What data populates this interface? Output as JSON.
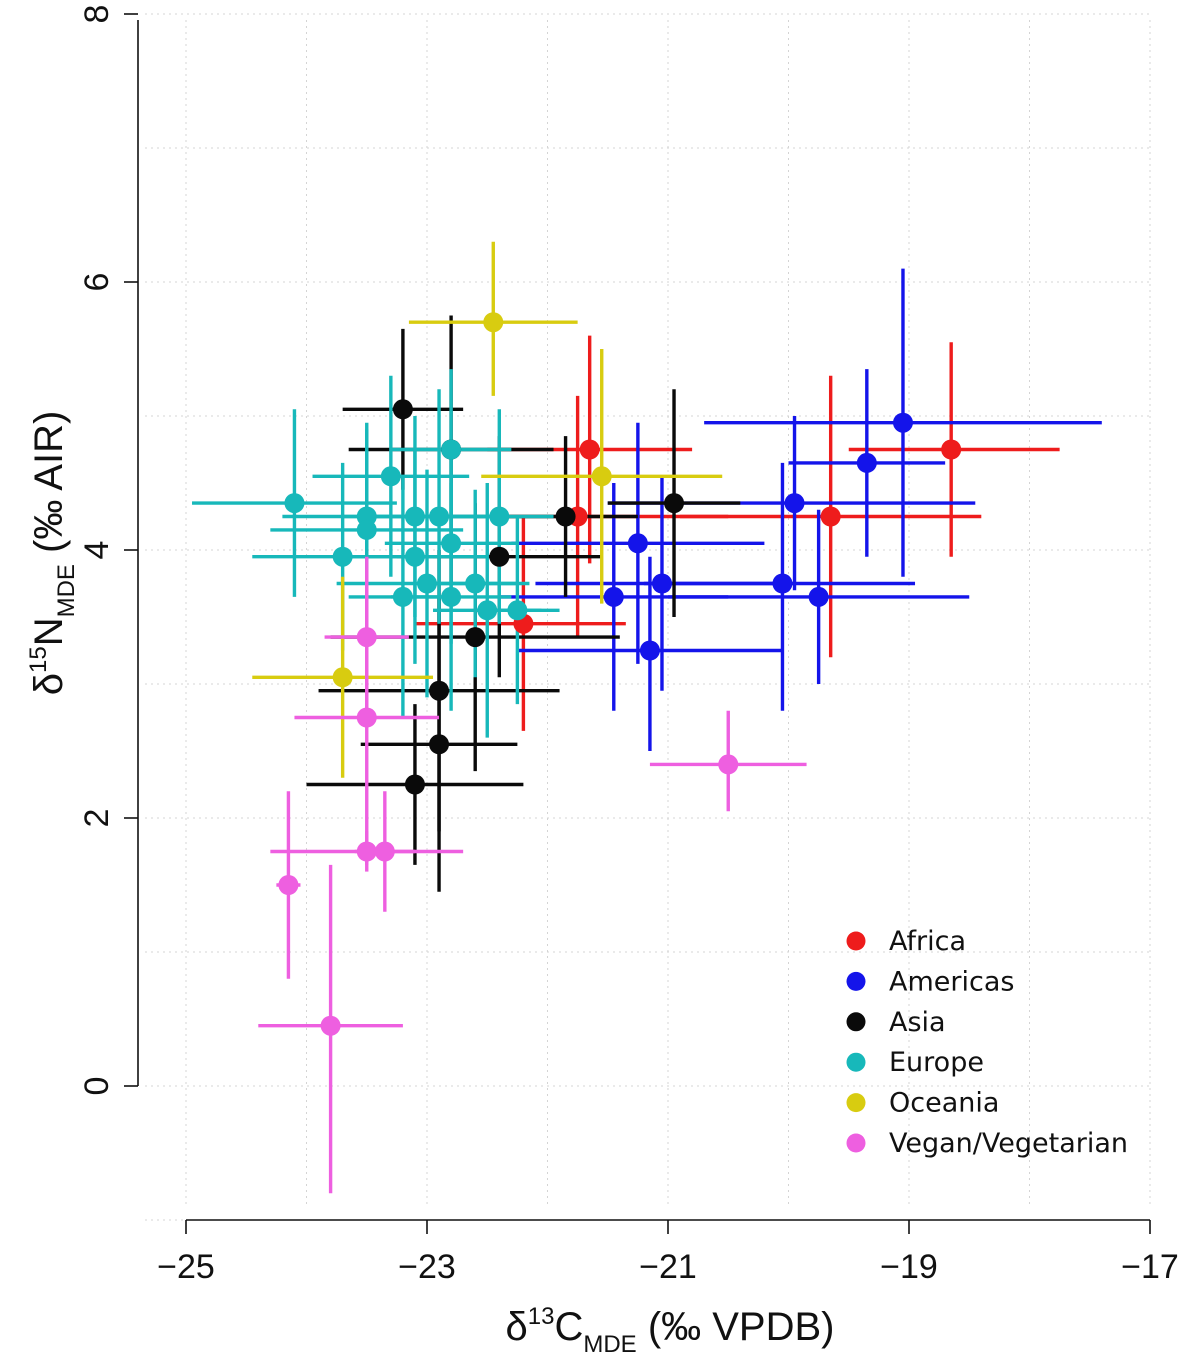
{
  "chart_data": {
    "type": "scatter",
    "title": "",
    "xlabel": {
      "base": "δ",
      "sup": "13",
      "main": "C",
      "sub": "MDE",
      "tail": " (‰ VPDB)"
    },
    "ylabel": {
      "base": "δ",
      "sup": "15",
      "main": "N",
      "sub": "MDE",
      "tail": " (‰ AIR)"
    },
    "xlim": [
      -25,
      -17
    ],
    "ylim": [
      -1,
      8
    ],
    "x_ticks": [
      -25,
      -23,
      -21,
      -19,
      -17
    ],
    "x_tick_labels": [
      "−25",
      "−23",
      "−21",
      "−19",
      "−17"
    ],
    "y_ticks": [
      0,
      2,
      4,
      6,
      8
    ],
    "y_tick_labels": [
      "0",
      "2",
      "4",
      "6",
      "8"
    ],
    "grid": true,
    "error_bars": true,
    "legend_position": "bottom-right",
    "series": [
      {
        "name": "Africa",
        "color": "#ee1c1c",
        "points": [
          {
            "x": -21.65,
            "y": 4.75,
            "xlo": -22.5,
            "xhi": -20.8,
            "ylo": 3.9,
            "yhi": 5.6
          },
          {
            "x": -21.75,
            "y": 4.25,
            "xlo": -23.0,
            "xhi": -20.5,
            "ylo": 3.35,
            "yhi": 5.15
          },
          {
            "x": -22.2,
            "y": 3.45,
            "xlo": -23.1,
            "xhi": -21.35,
            "ylo": 2.65,
            "yhi": 4.25
          },
          {
            "x": -19.65,
            "y": 4.25,
            "xlo": -20.9,
            "xhi": -18.4,
            "ylo": 3.2,
            "yhi": 5.3
          },
          {
            "x": -18.65,
            "y": 4.75,
            "xlo": -19.5,
            "xhi": -17.75,
            "ylo": 3.95,
            "yhi": 5.55
          }
        ]
      },
      {
        "name": "Americas",
        "color": "#1414ea",
        "points": [
          {
            "x": -19.05,
            "y": 4.95,
            "xlo": -20.7,
            "xhi": -17.4,
            "ylo": 3.8,
            "yhi": 6.1
          },
          {
            "x": -19.35,
            "y": 4.65,
            "xlo": -20.0,
            "xhi": -18.7,
            "ylo": 3.95,
            "yhi": 5.35
          },
          {
            "x": -19.95,
            "y": 4.35,
            "xlo": -21.5,
            "xhi": -18.45,
            "ylo": 3.7,
            "yhi": 5.0
          },
          {
            "x": -21.25,
            "y": 4.05,
            "xlo": -22.3,
            "xhi": -20.2,
            "ylo": 3.15,
            "yhi": 4.95
          },
          {
            "x": -21.05,
            "y": 3.75,
            "xlo": -22.1,
            "xhi": -20.0,
            "ylo": 2.95,
            "yhi": 4.55
          },
          {
            "x": -20.05,
            "y": 3.75,
            "xlo": -21.2,
            "xhi": -18.95,
            "ylo": 2.8,
            "yhi": 4.65
          },
          {
            "x": -21.45,
            "y": 3.65,
            "xlo": -22.4,
            "xhi": -20.5,
            "ylo": 2.8,
            "yhi": 4.5
          },
          {
            "x": -19.75,
            "y": 3.65,
            "xlo": -21.0,
            "xhi": -18.5,
            "ylo": 3.0,
            "yhi": 4.3
          },
          {
            "x": -21.15,
            "y": 3.25,
            "xlo": -22.25,
            "xhi": -20.05,
            "ylo": 2.5,
            "yhi": 3.95
          }
        ]
      },
      {
        "name": "Asia",
        "color": "#0a0a0a",
        "points": [
          {
            "x": -23.2,
            "y": 5.05,
            "xlo": -23.7,
            "xhi": -22.7,
            "ylo": 4.45,
            "yhi": 5.65
          },
          {
            "x": -22.4,
            "y": 3.95,
            "xlo": -23.25,
            "xhi": -21.55,
            "ylo": 3.05,
            "yhi": 4.85
          },
          {
            "x": -21.85,
            "y": 4.25,
            "xlo": -22.45,
            "xhi": -21.25,
            "ylo": 3.65,
            "yhi": 4.85
          },
          {
            "x": -20.95,
            "y": 4.35,
            "xlo": -21.5,
            "xhi": -20.4,
            "ylo": 3.5,
            "yhi": 5.2
          },
          {
            "x": -22.6,
            "y": 3.35,
            "xlo": -23.8,
            "xhi": -21.4,
            "ylo": 2.35,
            "yhi": 4.35
          },
          {
            "x": -22.9,
            "y": 2.95,
            "xlo": -23.9,
            "xhi": -21.9,
            "ylo": 1.9,
            "yhi": 4.0
          },
          {
            "x": -22.9,
            "y": 2.55,
            "xlo": -23.55,
            "xhi": -22.25,
            "ylo": 1.45,
            "yhi": 3.65
          },
          {
            "x": -23.1,
            "y": 2.25,
            "xlo": -24.0,
            "xhi": -22.2,
            "ylo": 1.65,
            "yhi": 2.85
          },
          {
            "x": -22.8,
            "y": 4.75,
            "xlo": -23.65,
            "xhi": -21.95,
            "ylo": 3.75,
            "yhi": 5.75
          }
        ]
      },
      {
        "name": "Europe",
        "color": "#17b8ba",
        "points": [
          {
            "x": -24.1,
            "y": 4.35,
            "xlo": -24.95,
            "xhi": -23.25,
            "ylo": 3.65,
            "yhi": 5.05
          },
          {
            "x": -23.3,
            "y": 4.55,
            "xlo": -23.95,
            "xhi": -22.65,
            "ylo": 3.8,
            "yhi": 5.3
          },
          {
            "x": -22.8,
            "y": 4.75,
            "xlo": -23.3,
            "xhi": -22.3,
            "ylo": 4.15,
            "yhi": 5.35
          },
          {
            "x": -23.5,
            "y": 4.25,
            "xlo": -24.2,
            "xhi": -22.8,
            "ylo": 3.6,
            "yhi": 4.9
          },
          {
            "x": -23.5,
            "y": 4.15,
            "xlo": -24.3,
            "xhi": -22.7,
            "ylo": 3.35,
            "yhi": 4.95
          },
          {
            "x": -23.1,
            "y": 4.25,
            "xlo": -23.7,
            "xhi": -22.5,
            "ylo": 3.5,
            "yhi": 5.0
          },
          {
            "x": -22.9,
            "y": 4.25,
            "xlo": -23.45,
            "xhi": -22.35,
            "ylo": 3.45,
            "yhi": 5.2
          },
          {
            "x": -22.4,
            "y": 4.25,
            "xlo": -22.85,
            "xhi": -21.95,
            "ylo": 3.45,
            "yhi": 5.05
          },
          {
            "x": -22.8,
            "y": 4.05,
            "xlo": -23.35,
            "xhi": -22.25,
            "ylo": 3.3,
            "yhi": 4.8
          },
          {
            "x": -23.7,
            "y": 3.95,
            "xlo": -24.45,
            "xhi": -22.95,
            "ylo": 3.25,
            "yhi": 4.65
          },
          {
            "x": -23.1,
            "y": 3.95,
            "xlo": -23.7,
            "xhi": -22.5,
            "ylo": 3.15,
            "yhi": 4.75
          },
          {
            "x": -23.0,
            "y": 3.75,
            "xlo": -23.75,
            "xhi": -22.25,
            "ylo": 2.9,
            "yhi": 4.6
          },
          {
            "x": -22.6,
            "y": 3.75,
            "xlo": -23.05,
            "xhi": -22.15,
            "ylo": 3.05,
            "yhi": 4.45
          },
          {
            "x": -23.2,
            "y": 3.65,
            "xlo": -23.65,
            "xhi": -22.75,
            "ylo": 2.75,
            "yhi": 4.55
          },
          {
            "x": -22.8,
            "y": 3.65,
            "xlo": -23.3,
            "xhi": -22.3,
            "ylo": 2.8,
            "yhi": 4.5
          },
          {
            "x": -22.5,
            "y": 3.55,
            "xlo": -22.95,
            "xhi": -22.05,
            "ylo": 2.6,
            "yhi": 4.5
          },
          {
            "x": -22.25,
            "y": 3.55,
            "xlo": -22.6,
            "xhi": -21.9,
            "ylo": 2.85,
            "yhi": 4.25
          }
        ]
      },
      {
        "name": "Oceania",
        "color": "#d8cc10",
        "points": [
          {
            "x": -22.45,
            "y": 5.7,
            "xlo": -23.15,
            "xhi": -21.75,
            "ylo": 5.15,
            "yhi": 6.3
          },
          {
            "x": -21.55,
            "y": 4.55,
            "xlo": -22.55,
            "xhi": -20.55,
            "ylo": 3.6,
            "yhi": 5.5
          },
          {
            "x": -23.7,
            "y": 3.05,
            "xlo": -24.45,
            "xhi": -22.95,
            "ylo": 2.3,
            "yhi": 3.8
          }
        ]
      },
      {
        "name": "Vegan/Vegetarian",
        "color": "#ee5fe0",
        "points": [
          {
            "x": -23.5,
            "y": 3.35,
            "xlo": -23.85,
            "xhi": -23.15,
            "ylo": 2.8,
            "yhi": 3.95
          },
          {
            "x": -23.5,
            "y": 2.75,
            "xlo": -24.1,
            "xhi": -22.9,
            "ylo": 1.65,
            "yhi": 3.85
          },
          {
            "x": -23.5,
            "y": 1.75,
            "xlo": -24.3,
            "xhi": -22.7,
            "ylo": 1.6,
            "yhi": 1.9
          },
          {
            "x": -23.35,
            "y": 1.75,
            "xlo": -23.6,
            "xhi": -23.1,
            "ylo": 1.3,
            "yhi": 2.2
          },
          {
            "x": -24.15,
            "y": 1.5,
            "xlo": -24.25,
            "xhi": -24.05,
            "ylo": 0.8,
            "yhi": 2.2
          },
          {
            "x": -23.8,
            "y": 0.45,
            "xlo": -24.4,
            "xhi": -23.2,
            "ylo": -0.8,
            "yhi": 1.65
          },
          {
            "x": -20.5,
            "y": 2.4,
            "xlo": -21.15,
            "xhi": -19.85,
            "ylo": 2.05,
            "yhi": 2.8
          }
        ]
      }
    ]
  }
}
